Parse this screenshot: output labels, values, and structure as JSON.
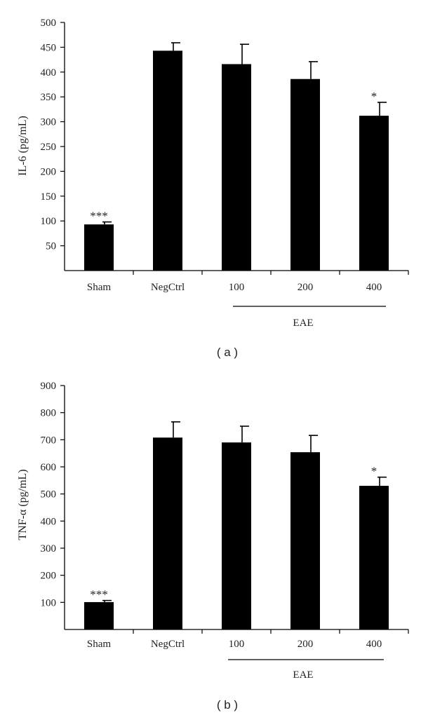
{
  "chart_data": [
    {
      "type": "bar",
      "panel_label": "( a )",
      "ylabel": "IL-6 (pg/mL)",
      "ylim": [
        0,
        500
      ],
      "yticks": [
        50,
        100,
        150,
        200,
        250,
        300,
        350,
        400,
        450,
        500
      ],
      "categories": [
        "Sham",
        "NegCtrl",
        "100",
        "200",
        "400"
      ],
      "values": [
        93,
        443,
        416,
        386,
        312
      ],
      "errors": [
        5,
        16,
        40,
        35,
        27
      ],
      "annotations": [
        "***",
        "",
        "",
        "",
        "*"
      ],
      "group": {
        "label": "EAE",
        "from_category": 2,
        "to_category": 4
      },
      "bar_color": "#000000",
      "grid": false
    },
    {
      "type": "bar",
      "panel_label": "( b )",
      "ylabel": "TNF-α (pg/mL)",
      "ylim": [
        0,
        900
      ],
      "yticks": [
        100,
        200,
        300,
        400,
        500,
        600,
        700,
        800,
        900
      ],
      "categories": [
        "Sham",
        "NegCtrl",
        "100",
        "200",
        "400"
      ],
      "values": [
        101,
        708,
        690,
        654,
        530
      ],
      "errors": [
        6,
        58,
        60,
        62,
        32
      ],
      "annotations": [
        "***",
        "",
        "",
        "",
        "*"
      ],
      "group": {
        "label": "EAE",
        "from_category": 2,
        "to_category": 4
      },
      "bar_color": "#000000",
      "grid": false
    }
  ]
}
